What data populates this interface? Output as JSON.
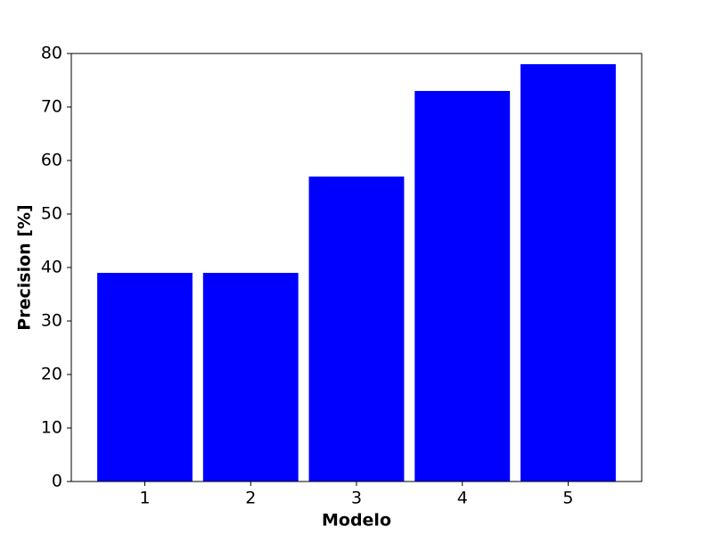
{
  "chart_data": {
    "type": "bar",
    "x_label": "Modelo",
    "y_label": "Precision [%]",
    "categories": [
      "1",
      "2",
      "3",
      "4",
      "5"
    ],
    "values": [
      39,
      39,
      57,
      73,
      78
    ],
    "color": "#0000ff",
    "ylim": [
      0,
      80
    ],
    "yticks": [
      0,
      10,
      20,
      30,
      40,
      50,
      60,
      70,
      80
    ],
    "grid": false
  }
}
